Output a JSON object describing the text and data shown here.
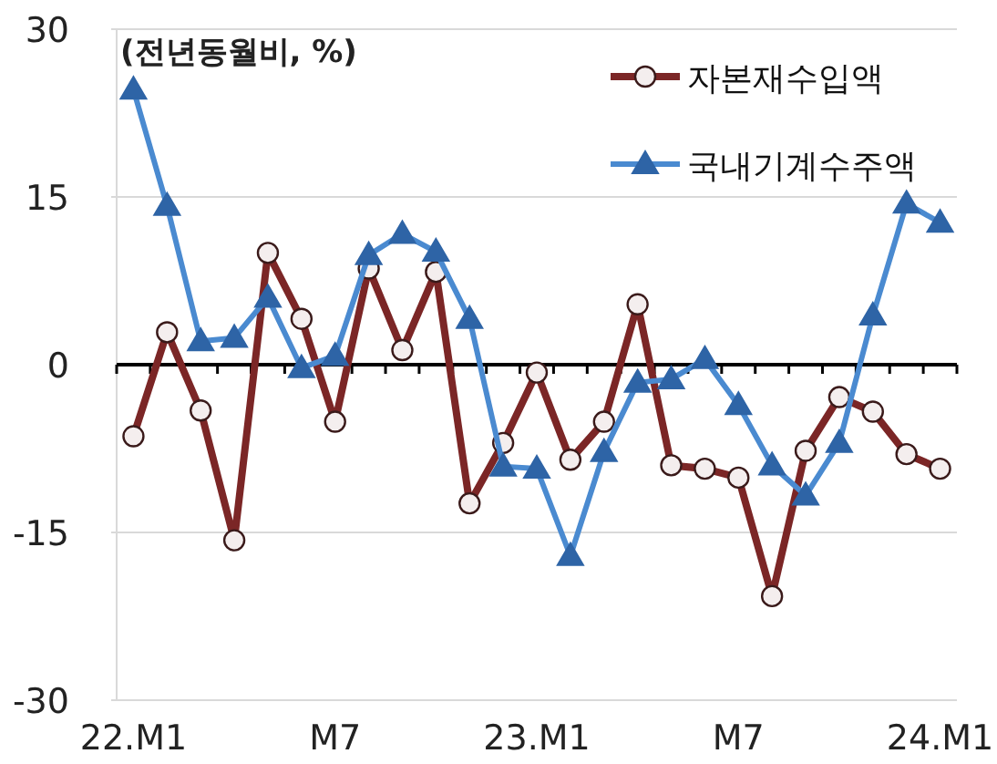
{
  "chart_data": {
    "type": "line",
    "annotations": [
      "(전년동월비, %)"
    ],
    "categories": [
      "22.M1",
      null,
      null,
      null,
      null,
      null,
      "M7",
      null,
      null,
      null,
      null,
      null,
      "23.M1",
      null,
      null,
      null,
      null,
      null,
      "M7",
      null,
      null,
      null,
      null,
      null,
      "24.M1"
    ],
    "series": [
      {
        "name": "자본재수입액",
        "color": "#7b2626",
        "marker": "circle",
        "values": [
          -6.4,
          2.9,
          -4.1,
          -15.7,
          10,
          4.1,
          -5.1,
          8.6,
          1.3,
          8.3,
          -12.4,
          -7,
          -0.7,
          -8.5,
          -5.1,
          5.4,
          -9,
          -9.3,
          -10.1,
          -20.7,
          -7.7,
          -2.9,
          -4.2,
          -8,
          -9.3
        ]
      },
      {
        "name": "국내기계수주액",
        "color": "#4a8ad0",
        "marker": "triangle",
        "values": [
          24.6,
          14.2,
          2.1,
          2.4,
          6,
          -0.3,
          0.8,
          9.8,
          11.7,
          10.1,
          4.1,
          -9.1,
          -9.3,
          -17.1,
          -7.8,
          -1.6,
          -1.3,
          0.5,
          -3.6,
          -9,
          -11.7,
          -7,
          4.4,
          14.4,
          12.7
        ]
      }
    ],
    "ylim": [
      -30,
      30
    ],
    "yticks": [
      -30,
      -15,
      0,
      15,
      30
    ],
    "grid": "y",
    "legend": "top right"
  }
}
